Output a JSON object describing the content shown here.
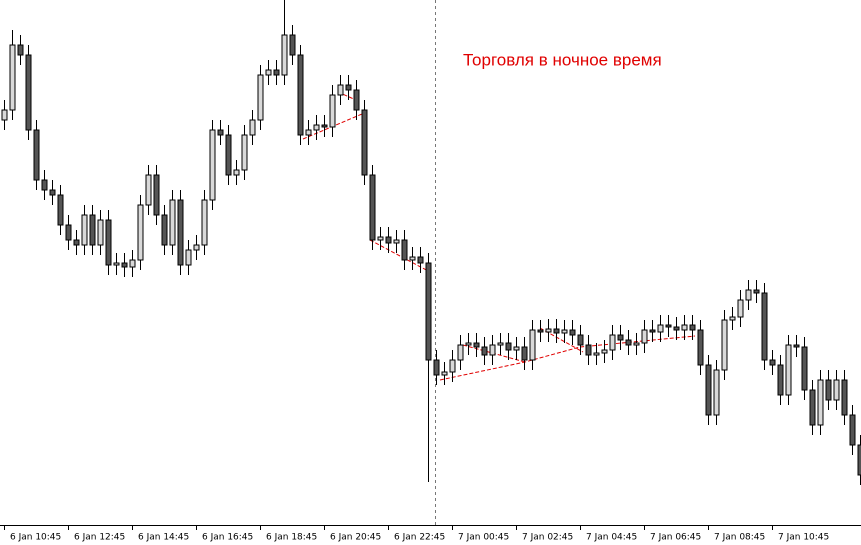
{
  "chart_data": {
    "type": "candlestick",
    "annotation": "Торговля в ночное время",
    "up_color": "#d9d9d9",
    "down_color": "#555555",
    "outline_color": "#000000",
    "categories": [
      "6 Jan 10:45",
      null,
      null,
      null,
      null,
      null,
      null,
      null,
      "6 Jan 12:45",
      null,
      null,
      null,
      null,
      null,
      null,
      null,
      "6 Jan 14:45",
      null,
      null,
      null,
      null,
      null,
      null,
      null,
      "6 Jan 16:45",
      null,
      null,
      null,
      null,
      null,
      null,
      null,
      "6 Jan 18:45",
      null,
      null,
      null,
      null,
      null,
      null,
      null,
      "6 Jan 20:45",
      null,
      null,
      null,
      null,
      null,
      null,
      null,
      "6 Jan 22:45",
      null,
      null,
      null,
      null,
      null,
      null,
      null,
      "7 Jan 00:45",
      null,
      null,
      null,
      null,
      null,
      null,
      null,
      "7 Jan 02:45",
      null,
      null,
      null,
      null,
      null,
      null,
      null,
      "7 Jan 04:45",
      null,
      null,
      null,
      null,
      null,
      null,
      null,
      "7 Jan 06:45",
      null,
      null,
      null,
      null,
      null,
      null,
      null,
      "7 Jan 08:45",
      null,
      null,
      null,
      null,
      null,
      null,
      null,
      "7 Jan 10:45",
      null,
      null,
      null,
      null,
      null,
      null,
      null,
      null,
      null,
      null,
      null
    ],
    "open": [
      405,
      415,
      480,
      470,
      395,
      345,
      335,
      330,
      300,
      285,
      280,
      310,
      280,
      305,
      260,
      262,
      258,
      265,
      320,
      350,
      310,
      280,
      325,
      260,
      275,
      280,
      325,
      395,
      390,
      350,
      355,
      390,
      405,
      450,
      455,
      450,
      490,
      470,
      390,
      395,
      400,
      398,
      430,
      440,
      435,
      415,
      350,
      285,
      288,
      282,
      285,
      265,
      268,
      262,
      165,
      150,
      153,
      165,
      180,
      182,
      178,
      170,
      180,
      182,
      175,
      178,
      165,
      195,
      193,
      196,
      192,
      195,
      190,
      180,
      170,
      172,
      175,
      190,
      185,
      180,
      182,
      195,
      193,
      200,
      198,
      195,
      200,
      195,
      160,
      110,
      155,
      205,
      208,
      225,
      235,
      232,
      165,
      160,
      130,
      180,
      178,
      135,
      100,
      145,
      125,
      145,
      110,
      80
    ],
    "high": [
      425,
      495,
      490,
      480,
      405,
      355,
      345,
      340,
      310,
      295,
      320,
      320,
      315,
      315,
      272,
      272,
      275,
      330,
      360,
      360,
      320,
      335,
      335,
      285,
      290,
      335,
      405,
      405,
      400,
      365,
      400,
      415,
      460,
      465,
      465,
      525,
      500,
      480,
      405,
      410,
      410,
      440,
      450,
      450,
      445,
      425,
      360,
      298,
      298,
      295,
      295,
      278,
      278,
      272,
      175,
      163,
      175,
      190,
      192,
      192,
      188,
      190,
      192,
      192,
      188,
      188,
      205,
      205,
      206,
      206,
      205,
      205,
      200,
      190,
      182,
      185,
      200,
      200,
      195,
      192,
      205,
      205,
      210,
      210,
      208,
      210,
      210,
      205,
      170,
      165,
      215,
      218,
      235,
      245,
      245,
      242,
      175,
      170,
      190,
      190,
      188,
      145,
      155,
      155,
      155,
      155,
      120,
      90
    ],
    "low": [
      395,
      405,
      460,
      385,
      335,
      325,
      320,
      290,
      275,
      270,
      270,
      270,
      270,
      250,
      250,
      248,
      248,
      255,
      310,
      300,
      270,
      270,
      250,
      250,
      265,
      270,
      315,
      380,
      340,
      340,
      345,
      380,
      395,
      440,
      440,
      440,
      460,
      380,
      380,
      385,
      388,
      388,
      420,
      425,
      405,
      340,
      275,
      275,
      272,
      272,
      255,
      255,
      252,
      43,
      140,
      140,
      143,
      155,
      170,
      168,
      160,
      160,
      170,
      165,
      165,
      155,
      155,
      183,
      183,
      182,
      182,
      180,
      170,
      160,
      160,
      162,
      165,
      175,
      170,
      170,
      172,
      183,
      183,
      188,
      185,
      185,
      185,
      150,
      100,
      100,
      145,
      195,
      198,
      215,
      222,
      155,
      150,
      120,
      120,
      168,
      125,
      90,
      90,
      115,
      115,
      100,
      70,
      40
    ],
    "close": [
      415,
      480,
      470,
      395,
      345,
      335,
      330,
      300,
      285,
      280,
      310,
      280,
      305,
      260,
      262,
      258,
      265,
      320,
      350,
      310,
      280,
      325,
      260,
      275,
      280,
      325,
      395,
      390,
      350,
      355,
      390,
      405,
      450,
      455,
      450,
      490,
      470,
      390,
      395,
      400,
      398,
      430,
      440,
      435,
      415,
      350,
      285,
      288,
      282,
      285,
      265,
      268,
      262,
      165,
      150,
      153,
      165,
      180,
      182,
      178,
      170,
      180,
      182,
      175,
      178,
      165,
      195,
      193,
      196,
      192,
      195,
      190,
      180,
      170,
      172,
      175,
      190,
      185,
      180,
      182,
      195,
      193,
      200,
      198,
      195,
      200,
      195,
      160,
      110,
      155,
      205,
      208,
      225,
      235,
      232,
      165,
      160,
      130,
      180,
      178,
      135,
      100,
      145,
      125,
      145,
      110,
      80,
      50
    ]
  }
}
